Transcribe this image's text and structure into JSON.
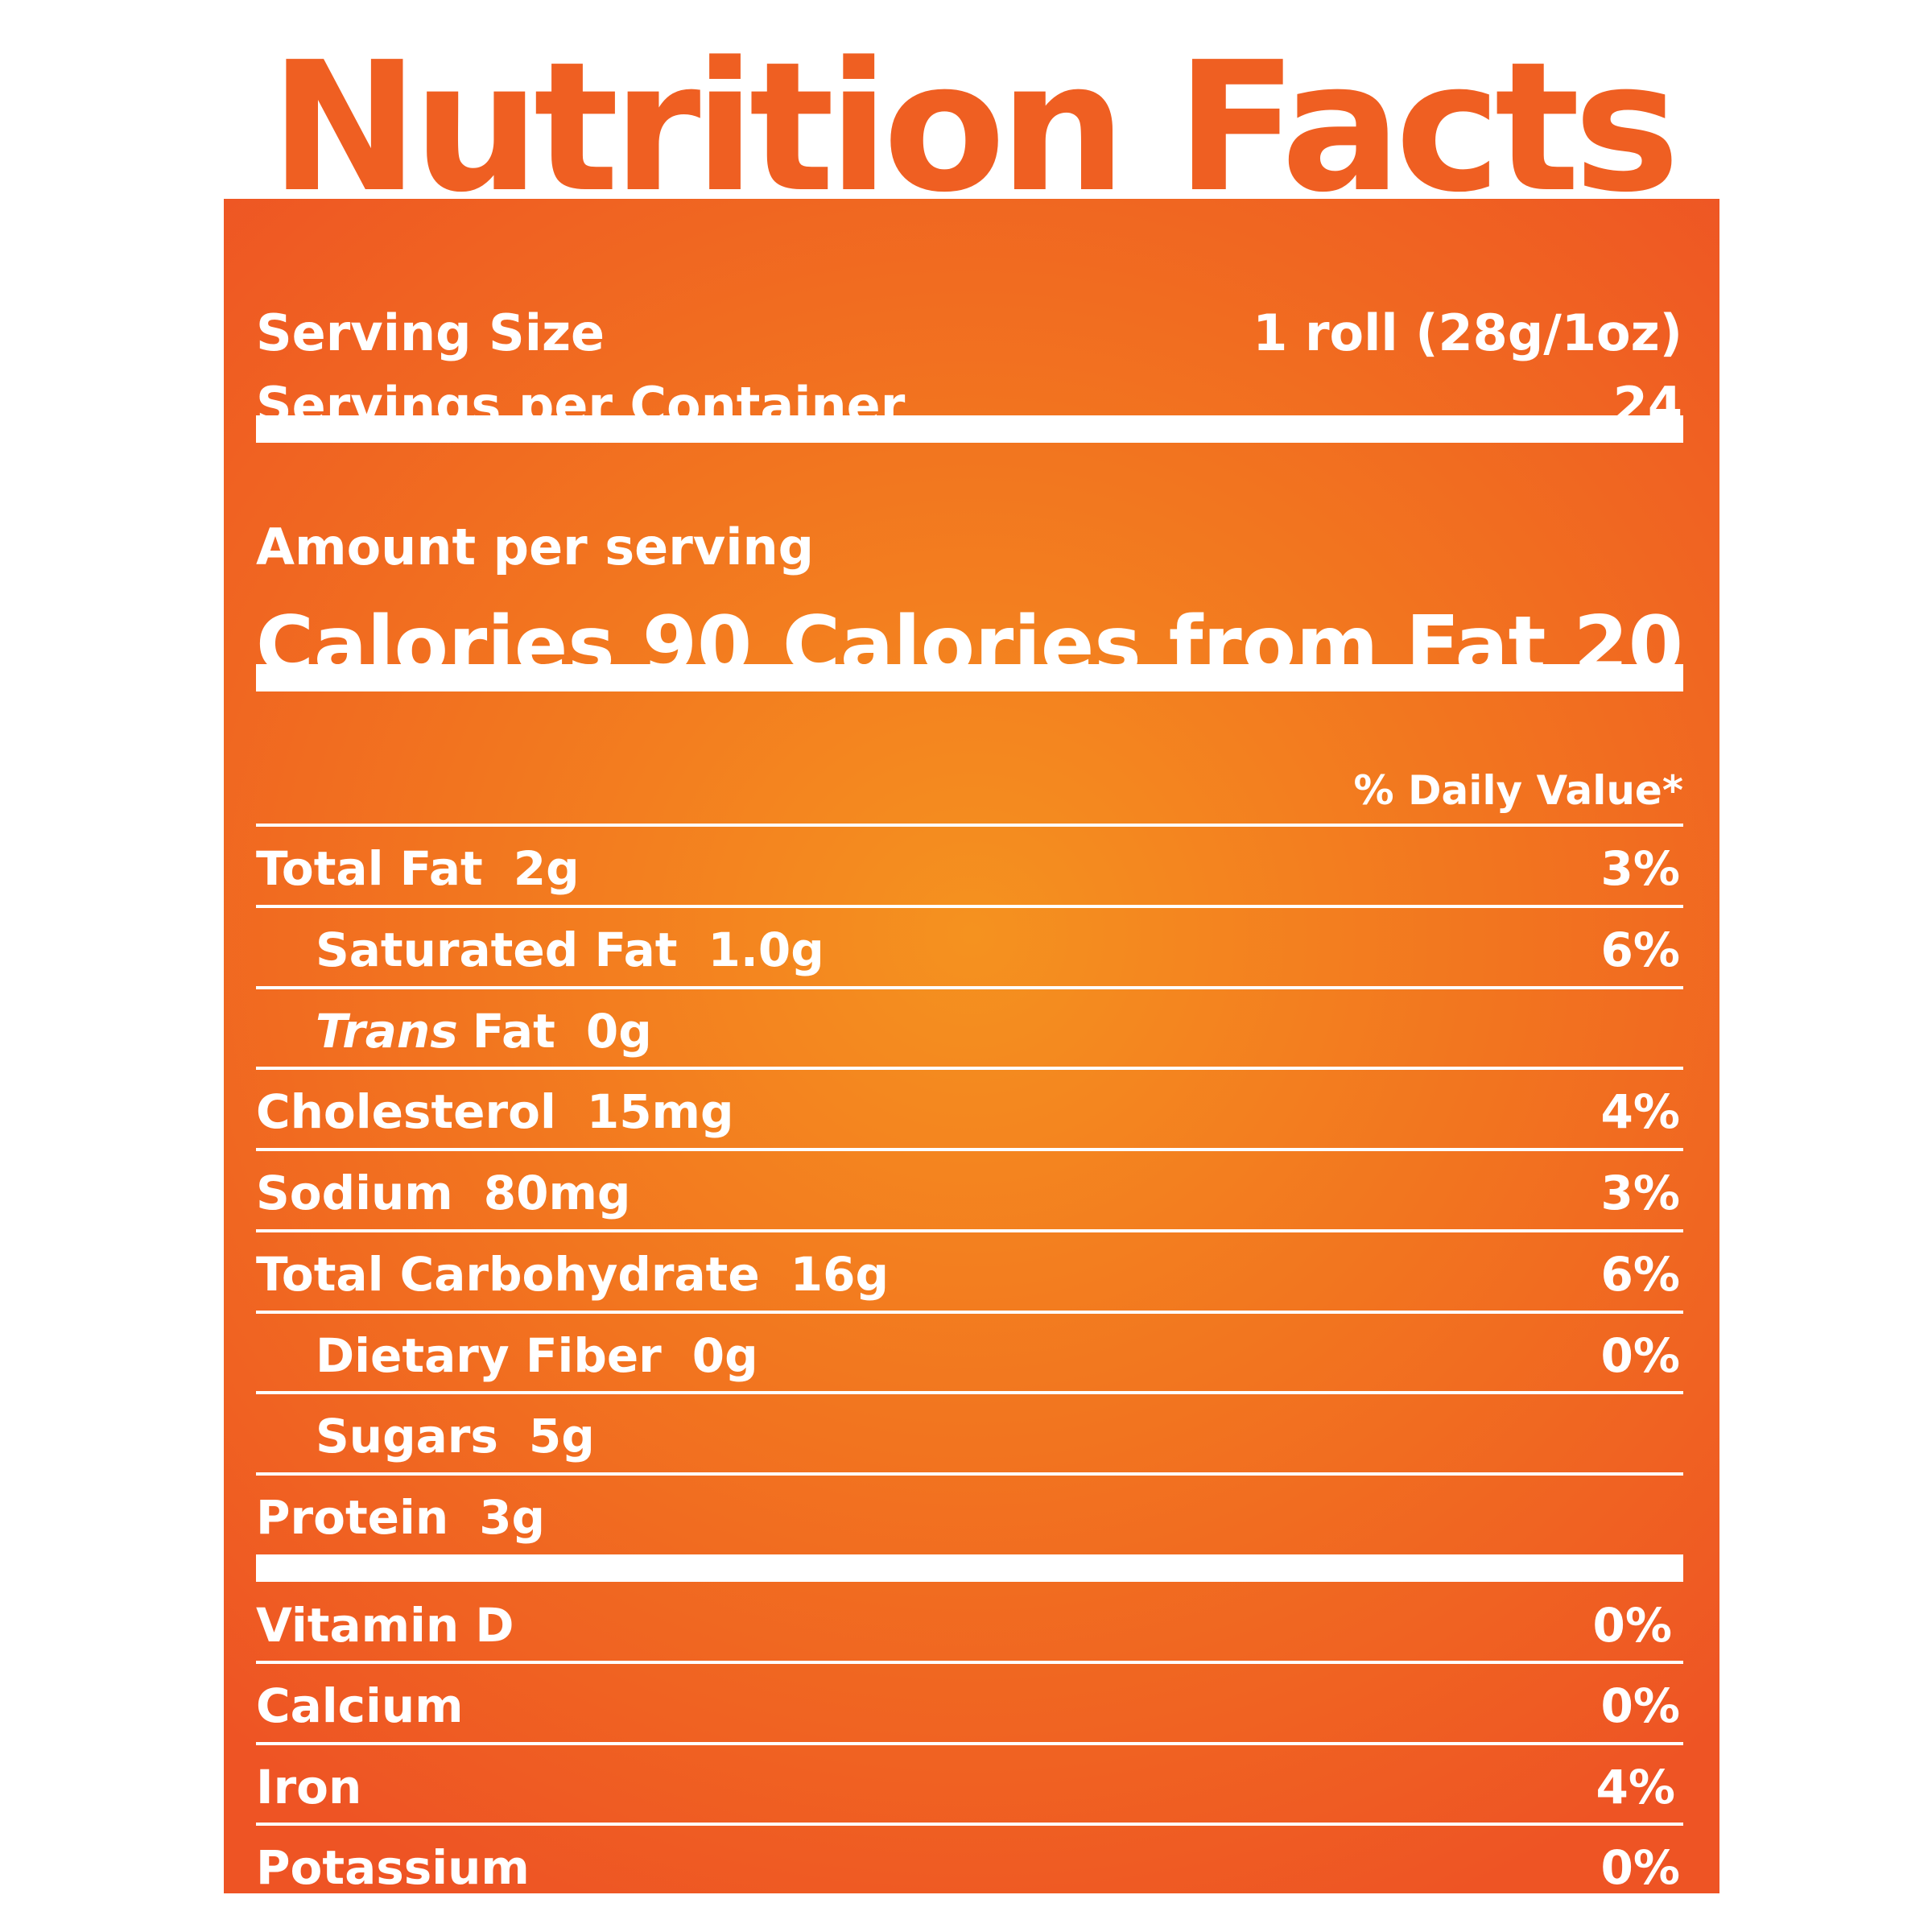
{
  "title": "Nutrition Facts",
  "serving": {
    "size_label": "Serving Size",
    "size_value": "1 roll (28g/1oz)",
    "per_container_label": "Servings per Container",
    "per_container_value": "24"
  },
  "amount": {
    "heading": "Amount per serving",
    "calories_label": "Calories",
    "calories_value": "90",
    "fat_calories_label": "Calories from Fat",
    "fat_calories_value": "20"
  },
  "dv_header": "% Daily Value*",
  "nutrients": {
    "total_fat": {
      "name": "Total Fat",
      "amount": "2g",
      "dv": "3%"
    },
    "saturated_fat": {
      "name": "Saturated Fat",
      "amount": "1.0g",
      "dv": "6%"
    },
    "trans_fat": {
      "name_italic": "Trans",
      "name": "Fat",
      "amount": "0g"
    },
    "cholesterol": {
      "name": "Cholesterol",
      "amount": "15mg",
      "dv": "4%"
    },
    "sodium": {
      "name": "Sodium",
      "amount": "80mg",
      "dv": "3%"
    },
    "total_carbohydrate": {
      "name": "Total Carbohydrate",
      "amount": "16g",
      "dv": "6%"
    },
    "dietary_fiber": {
      "name": "Dietary Fiber",
      "amount": "0g",
      "dv": "0%"
    },
    "sugars": {
      "name": "Sugars",
      "amount": "5g"
    },
    "protein": {
      "name": "Protein",
      "amount": "3g"
    }
  },
  "vitamins": {
    "vitamin_d": {
      "name": "Vitamin D",
      "dv": "0%"
    },
    "calcium": {
      "name": "Calcium",
      "dv": "0%"
    },
    "iron": {
      "name": "Iron",
      "dv": "4%"
    },
    "potassium": {
      "name": "Potassium",
      "dv": "0%"
    }
  },
  "colors": {
    "label_center": "#f5921f",
    "label_edge": "#ee5424",
    "title_text": "#ef5f22",
    "text": "#ffffff"
  }
}
